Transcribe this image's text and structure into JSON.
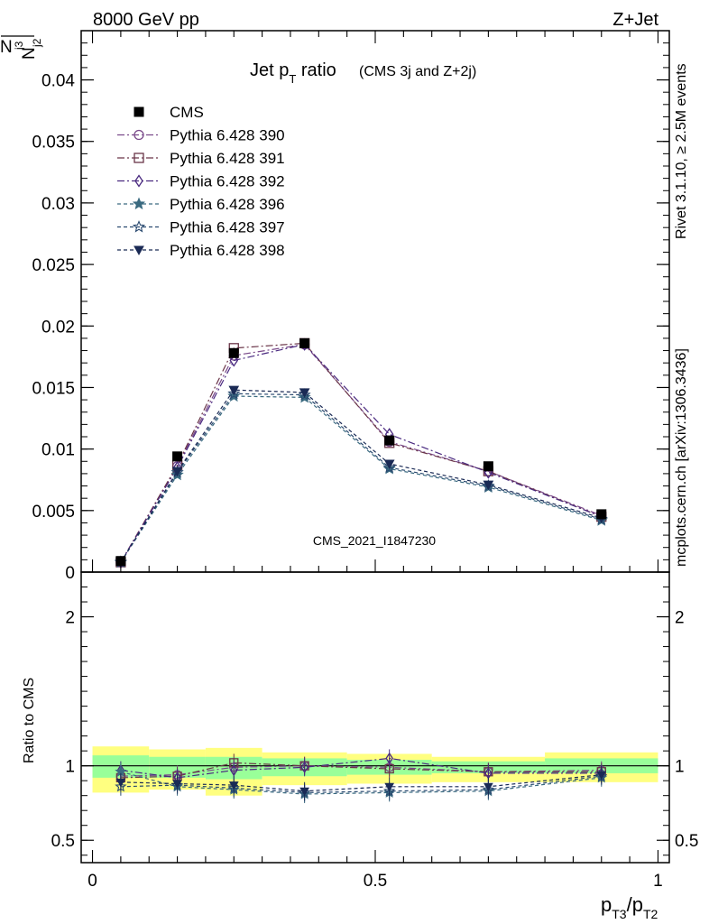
{
  "header": {
    "left": "8000 GeV pp",
    "right": "Z+Jet"
  },
  "side_labels": {
    "rivet": "Rivet 3.1.10, ≥ 2.5M events",
    "mcplots": "mcplots.cern.ch [arXiv:1306.3436]"
  },
  "watermark": "CMS_2021_I1847230",
  "colors": {
    "cms": "#000000",
    "py390": "#7a4a8a",
    "py391": "#6a3548",
    "py392": "#4a2a80",
    "py396": "#3a6a80",
    "py397": "#2a4a70",
    "py398": "#1a2a55",
    "band_outer": "#ffff80",
    "band_inner": "#99ff99"
  },
  "chart_data": [
    {
      "type": "line",
      "panel": "main",
      "title": "Jet p_T ratio",
      "title_main": "Jet p",
      "title_sub": "T",
      "title_suffix": " ratio",
      "title_note": "(CMS 3j and Z+2j)",
      "ylabel_num": "N",
      "ylabel_num_sub": "j3",
      "ylabel_den": "N",
      "ylabel_den_sub": "j2",
      "xlim": [
        -0.02,
        1.02
      ],
      "ylim": [
        0,
        0.044
      ],
      "yticks": [
        {
          "v": 0,
          "label": "0"
        },
        {
          "v": 0.005,
          "label": "0.005"
        },
        {
          "v": 0.01,
          "label": "0.01"
        },
        {
          "v": 0.015,
          "label": "0.015"
        },
        {
          "v": 0.02,
          "label": "0.02"
        },
        {
          "v": 0.025,
          "label": "0.025"
        },
        {
          "v": 0.03,
          "label": "0.03"
        },
        {
          "v": 0.035,
          "label": "0.035"
        },
        {
          "v": 0.04,
          "label": "0.04"
        }
      ],
      "x": [
        0.05,
        0.15,
        0.25,
        0.375,
        0.525,
        0.7,
        0.9
      ],
      "data": {
        "name": "CMS",
        "values": [
          0.0009,
          0.0094,
          0.0178,
          0.0186,
          0.0107,
          0.0086,
          0.0047
        ]
      },
      "series": [
        {
          "name": "Pythia 6.428 390",
          "marker": "circle",
          "dash": "8,3,2,3",
          "values": [
            0.0008,
            0.0086,
            0.0176,
            0.0185,
            0.0106,
            0.0082,
            0.0046
          ]
        },
        {
          "name": "Pythia 6.428 391",
          "marker": "square",
          "dash": "8,3,2,3",
          "values": [
            0.0008,
            0.0087,
            0.0182,
            0.0186,
            0.0105,
            0.0082,
            0.0045
          ]
        },
        {
          "name": "Pythia 6.428 392",
          "marker": "diamond",
          "dash": "8,3,2,3",
          "values": [
            0.0008,
            0.0085,
            0.0172,
            0.0185,
            0.0112,
            0.0081,
            0.0045
          ]
        },
        {
          "name": "Pythia 6.428 396",
          "marker": "star",
          "dash": "4,3",
          "values": [
            0.0008,
            0.0079,
            0.0143,
            0.0142,
            0.0084,
            0.0069,
            0.0042
          ]
        },
        {
          "name": "Pythia 6.428 397",
          "marker": "staropen",
          "dash": "4,3",
          "values": [
            0.0008,
            0.0081,
            0.0145,
            0.0144,
            0.0085,
            0.007,
            0.0043
          ]
        },
        {
          "name": "Pythia 6.428 398",
          "marker": "trianglefilled",
          "dash": "4,3",
          "values": [
            0.0008,
            0.0082,
            0.0148,
            0.0146,
            0.0088,
            0.0071,
            0.0044
          ]
        }
      ]
    },
    {
      "type": "line",
      "panel": "ratio",
      "ylabel": "Ratio to CMS",
      "xlabel_main": "p",
      "xlabel_sub1": "T3",
      "xlabel_mid": "/p",
      "xlabel_sub2": "T2",
      "xlim": [
        -0.02,
        1.02
      ],
      "ylim": [
        0.35,
        2.3
      ],
      "xticks": [
        {
          "v": 0,
          "label": "0"
        },
        {
          "v": 0.5,
          "label": "0.5"
        },
        {
          "v": 1,
          "label": "1"
        }
      ],
      "yticks": [
        {
          "v": 0.5,
          "label": "0.5"
        },
        {
          "v": 1,
          "label": "1"
        },
        {
          "v": 2,
          "label": "2"
        }
      ],
      "bins": [
        [
          0.0,
          0.1
        ],
        [
          0.1,
          0.2
        ],
        [
          0.2,
          0.3
        ],
        [
          0.3,
          0.45
        ],
        [
          0.45,
          0.6
        ],
        [
          0.6,
          0.8
        ],
        [
          0.8,
          1.0
        ]
      ],
      "band_outer": [
        [
          0.82,
          1.13
        ],
        [
          0.84,
          1.11
        ],
        [
          0.8,
          1.12
        ],
        [
          0.87,
          1.09
        ],
        [
          0.88,
          1.08
        ],
        [
          0.89,
          1.06
        ],
        [
          0.89,
          1.09
        ]
      ],
      "band_inner": [
        [
          0.92,
          1.07
        ],
        [
          0.92,
          1.06
        ],
        [
          0.91,
          1.06
        ],
        [
          0.93,
          1.05
        ],
        [
          0.94,
          1.04
        ],
        [
          0.95,
          1.03
        ],
        [
          0.95,
          1.05
        ]
      ],
      "x": [
        0.05,
        0.15,
        0.25,
        0.375,
        0.525,
        0.7,
        0.9
      ],
      "series": [
        {
          "name": "Pythia 6.428 390",
          "marker": "circle",
          "dash": "8,3,2,3",
          "values": [
            0.93,
            0.94,
            0.99,
            1.0,
            0.99,
            0.96,
            0.97
          ]
        },
        {
          "name": "Pythia 6.428 391",
          "marker": "square",
          "dash": "8,3,2,3",
          "values": [
            0.92,
            0.93,
            1.02,
            1.0,
            0.98,
            0.96,
            0.96
          ]
        },
        {
          "name": "Pythia 6.428 392",
          "marker": "diamond",
          "dash": "8,3,2,3",
          "values": [
            0.97,
            0.92,
            0.97,
            0.99,
            1.05,
            0.95,
            0.95
          ]
        },
        {
          "name": "Pythia 6.428 396",
          "marker": "star",
          "dash": "4,3",
          "values": [
            0.96,
            0.86,
            0.84,
            0.81,
            0.82,
            0.83,
            0.92
          ]
        },
        {
          "name": "Pythia 6.428 397",
          "marker": "staropen",
          "dash": "4,3",
          "values": [
            0.86,
            0.87,
            0.85,
            0.82,
            0.83,
            0.84,
            0.93
          ]
        },
        {
          "name": "Pythia 6.428 398",
          "marker": "trianglefilled",
          "dash": "4,3",
          "values": [
            0.89,
            0.88,
            0.87,
            0.83,
            0.86,
            0.86,
            0.94
          ]
        }
      ]
    }
  ]
}
